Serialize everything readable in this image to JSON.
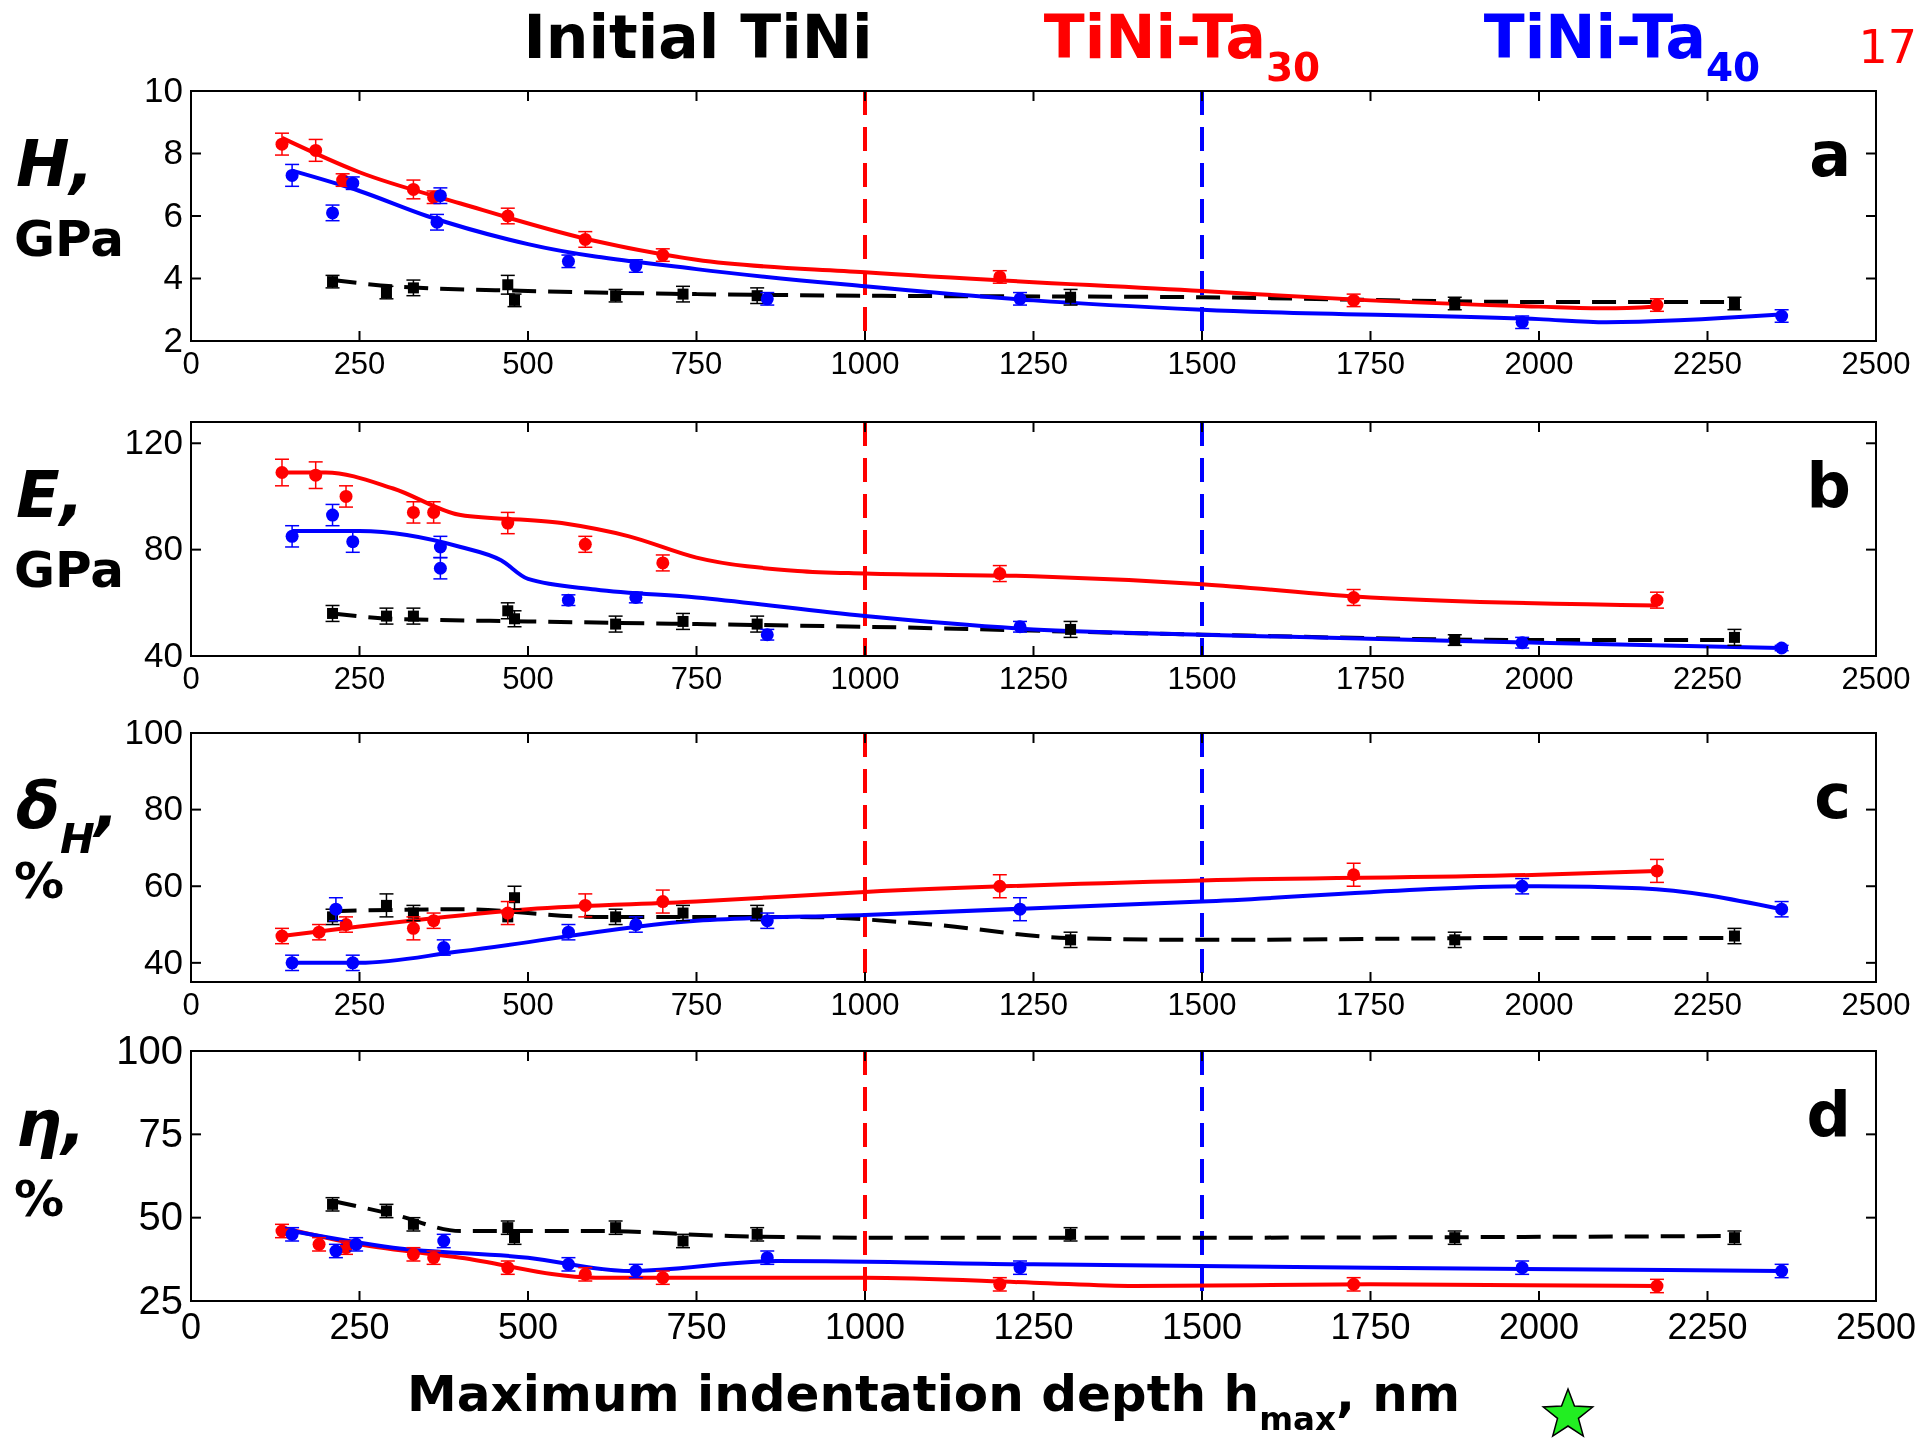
{
  "chart_data": [
    {
      "type": "scatter",
      "legend": "top",
      "ylabel": "H, GPa",
      "annotations": [
        "a",
        "17"
      ],
      "xlim": [
        0,
        2500
      ],
      "xticks": [
        0,
        250,
        500,
        750,
        1000,
        1250,
        1500,
        1750,
        2000,
        2250,
        2500
      ],
      "ylim": [
        2,
        10
      ],
      "yticks": [
        2,
        4,
        6,
        8,
        10
      ],
      "ref_lines": [
        {
          "axis": "x",
          "value": 1000,
          "color": "#ff0000",
          "line_style": "dashed"
        },
        {
          "axis": "x",
          "value": 1500,
          "color": "#0000ff",
          "line_style": "dashed"
        }
      ],
      "series": [
        {
          "type": "scatter",
          "name": "Initial TiNi",
          "color": "#000000",
          "marker": "square",
          "x": [
            210,
            290,
            330,
            470,
            480,
            630,
            730,
            840,
            1305,
            1875,
            2290
          ],
          "values": [
            3.9,
            3.55,
            3.7,
            3.8,
            3.3,
            3.45,
            3.5,
            3.45,
            3.4,
            3.2,
            3.2
          ],
          "errors": [
            0.2,
            0.2,
            0.25,
            0.3,
            0.2,
            0.2,
            0.25,
            0.25,
            0.25,
            0.2,
            0.2
          ]
        },
        {
          "type": "scatter",
          "name": "TiNi-Ta$_{30}$",
          "color": "#ff0000",
          "marker": "circle",
          "x": [
            135,
            185,
            225,
            330,
            360,
            470,
            585,
            700,
            1200,
            1725,
            2175
          ],
          "values": [
            8.3,
            8.1,
            7.15,
            6.85,
            6.6,
            6.0,
            5.25,
            4.75,
            4.05,
            3.3,
            3.15
          ],
          "errors": [
            0.35,
            0.35,
            0.2,
            0.3,
            0.2,
            0.25,
            0.25,
            0.2,
            0.2,
            0.2,
            0.2
          ]
        },
        {
          "type": "scatter",
          "name": "TiNi-Ta$_{40}$",
          "color": "#0000ff",
          "marker": "circle",
          "x": [
            150,
            210,
            240,
            365,
            370,
            560,
            660,
            855,
            1230,
            1975,
            2360
          ],
          "values": [
            7.3,
            6.1,
            7.05,
            5.8,
            6.65,
            4.55,
            4.4,
            3.35,
            3.35,
            2.6,
            2.8
          ],
          "errors": [
            0.35,
            0.25,
            0.2,
            0.25,
            0.25,
            0.2,
            0.2,
            0.2,
            0.2,
            0.2,
            0.2
          ]
        },
        {
          "type": "line",
          "color": "#000000",
          "line_style": "dashed",
          "x": [
            210,
            300,
            500,
            750,
            1000,
            1500,
            2000,
            2290
          ],
          "values": [
            3.95,
            3.75,
            3.6,
            3.5,
            3.45,
            3.4,
            3.25,
            3.25
          ]
        },
        {
          "type": "line",
          "color": "#ff0000",
          "line_style": "solid",
          "x": [
            135,
            250,
            400,
            600,
            750,
            1000,
            1500,
            1750,
            2000,
            2100,
            2175
          ],
          "values": [
            8.5,
            7.4,
            6.4,
            5.2,
            4.6,
            4.2,
            3.6,
            3.3,
            3.1,
            3.05,
            3.1
          ]
        },
        {
          "type": "line",
          "color": "#0000ff",
          "line_style": "solid",
          "x": [
            150,
            250,
            350,
            500,
            750,
            1000,
            1250,
            1500,
            2000,
            2100,
            2360
          ],
          "values": [
            7.45,
            6.8,
            6.0,
            5.1,
            4.3,
            3.75,
            3.3,
            3.0,
            2.7,
            2.6,
            2.85
          ]
        }
      ]
    },
    {
      "type": "scatter",
      "ylabel": "E, GPa",
      "annotations": [
        "b"
      ],
      "xlim": [
        0,
        2500
      ],
      "xticks": [
        0,
        250,
        500,
        750,
        1000,
        1250,
        1500,
        1750,
        2000,
        2250,
        2500
      ],
      "ylim": [
        40,
        128
      ],
      "yticks": [
        40,
        80,
        120
      ],
      "ref_lines": [
        {
          "axis": "x",
          "value": 1000,
          "color": "#ff0000",
          "line_style": "dashed"
        },
        {
          "axis": "x",
          "value": 1500,
          "color": "#0000ff",
          "line_style": "dashed"
        }
      ],
      "series": [
        {
          "type": "scatter",
          "color": "#000000",
          "marker": "square",
          "x": [
            210,
            290,
            330,
            470,
            480,
            630,
            730,
            840,
            1305,
            1875,
            2290
          ],
          "values": [
            56,
            55,
            55,
            57,
            54,
            52,
            53,
            52,
            50,
            46,
            47
          ],
          "errors": [
            3,
            3,
            3,
            3,
            3,
            3,
            3,
            3,
            3,
            2,
            3
          ]
        },
        {
          "type": "scatter",
          "color": "#ff0000",
          "marker": "circle",
          "x": [
            135,
            185,
            230,
            330,
            360,
            470,
            585,
            700,
            1200,
            1725,
            2175
          ],
          "values": [
            109,
            108,
            100,
            94,
            94,
            90,
            82,
            75,
            71,
            62,
            61
          ],
          "errors": [
            5,
            5,
            4,
            4,
            4,
            4,
            3,
            3,
            3,
            3,
            3
          ]
        },
        {
          "type": "scatter",
          "color": "#0000ff",
          "marker": "circle",
          "x": [
            150,
            210,
            240,
            370,
            370,
            560,
            660,
            855,
            1230,
            1975,
            2360
          ],
          "values": [
            85,
            93,
            83,
            81,
            73,
            61,
            62,
            48,
            51,
            45,
            43
          ],
          "errors": [
            4,
            4,
            4,
            4,
            4,
            2,
            2,
            2,
            2,
            2,
            1
          ]
        },
        {
          "type": "line",
          "color": "#000000",
          "line_style": "dashed",
          "x": [
            210,
            300,
            500,
            750,
            1000,
            1500,
            2000,
            2290
          ],
          "values": [
            56,
            54,
            53,
            52,
            51,
            48,
            46,
            46
          ]
        },
        {
          "type": "line",
          "color": "#ff0000",
          "line_style": "solid",
          "x": [
            135,
            200,
            300,
            400,
            550,
            650,
            750,
            900,
            1000,
            1250,
            1500,
            1750,
            2175
          ],
          "values": [
            109,
            109,
            103,
            93,
            90,
            85,
            77,
            72,
            71,
            70,
            67,
            62,
            59
          ]
        },
        {
          "type": "line",
          "color": "#0000ff",
          "line_style": "solid",
          "x": [
            150,
            250,
            400,
            460,
            500,
            600,
            750,
            1000,
            1250,
            1500,
            2000,
            2360
          ],
          "values": [
            87,
            87,
            81,
            76,
            69,
            65,
            62,
            55,
            50,
            48,
            45,
            43
          ]
        }
      ]
    },
    {
      "type": "scatter",
      "ylabel": "δ$_{H}$, %",
      "annotations": [
        "c"
      ],
      "xlim": [
        0,
        2500
      ],
      "xticks": [
        0,
        250,
        500,
        750,
        1000,
        1250,
        1500,
        1750,
        2000,
        2250,
        2500
      ],
      "ylim": [
        35,
        100
      ],
      "yticks": [
        40,
        60,
        80,
        100
      ],
      "ref_lines": [
        {
          "axis": "x",
          "value": 1000,
          "color": "#ff0000",
          "line_style": "dashed"
        },
        {
          "axis": "x",
          "value": 1500,
          "color": "#0000ff",
          "line_style": "dashed"
        }
      ],
      "series": [
        {
          "type": "scatter",
          "color": "#000000",
          "marker": "square",
          "x": [
            210,
            290,
            330,
            470,
            480,
            630,
            730,
            840,
            1305,
            1875,
            2290
          ],
          "values": [
            52,
            55,
            53,
            52,
            57,
            52,
            53,
            53,
            46,
            46,
            47
          ],
          "errors": [
            2,
            3,
            2,
            null,
            3,
            2,
            2,
            2,
            2,
            2,
            2
          ]
        },
        {
          "type": "scatter",
          "color": "#ff0000",
          "marker": "circle",
          "x": [
            135,
            190,
            230,
            330,
            360,
            470,
            585,
            700,
            1200,
            1725,
            2175
          ],
          "values": [
            47,
            48,
            50,
            49,
            51,
            53,
            55,
            56,
            60,
            63,
            64
          ],
          "errors": [
            2,
            2,
            2,
            3,
            2,
            3,
            3,
            3,
            3,
            3,
            3
          ]
        },
        {
          "type": "scatter",
          "color": "#0000ff",
          "marker": "circle",
          "x": [
            150,
            215,
            240,
            375,
            560,
            660,
            855,
            1230,
            1975,
            2360
          ],
          "values": [
            40,
            54,
            40,
            44,
            48,
            50,
            51,
            54,
            60,
            54
          ],
          "errors": [
            2,
            3,
            2,
            2,
            2,
            2,
            2,
            3,
            2,
            2
          ]
        },
        {
          "type": "line",
          "color": "#000000",
          "line_style": "dashed",
          "x": [
            210,
            400,
            600,
            900,
            1100,
            1300,
            1500,
            2000,
            2290
          ],
          "values": [
            53.5,
            54,
            52,
            52,
            50,
            46.5,
            46,
            46.5,
            46.5
          ]
        },
        {
          "type": "line",
          "color": "#ff0000",
          "line_style": "solid",
          "x": [
            135,
            250,
            500,
            750,
            1000,
            1500,
            2000,
            2175
          ],
          "values": [
            47,
            49.5,
            54,
            56,
            58.5,
            61.5,
            63,
            64
          ]
        },
        {
          "type": "line",
          "color": "#0000ff",
          "line_style": "solid",
          "x": [
            150,
            250,
            400,
            750,
            1000,
            1500,
            2000,
            2150,
            2360
          ],
          "values": [
            40,
            40,
            43,
            51,
            52.5,
            56,
            60,
            59.5,
            54
          ]
        }
      ]
    },
    {
      "type": "scatter",
      "ylabel": "η, %",
      "xlabel": "Maximum indentation depth h$_{max}$, nm",
      "annotations": [
        "d"
      ],
      "xlim": [
        0,
        2500
      ],
      "xticks": [
        0,
        250,
        500,
        750,
        1000,
        1250,
        1500,
        1750,
        2000,
        2250,
        2500
      ],
      "ylim": [
        25,
        100
      ],
      "yticks": [
        25,
        50,
        75,
        100
      ],
      "ref_lines": [
        {
          "axis": "x",
          "value": 1000,
          "color": "#ff0000",
          "line_style": "dashed"
        },
        {
          "axis": "x",
          "value": 1500,
          "color": "#0000ff",
          "line_style": "dashed"
        }
      ],
      "series": [
        {
          "type": "scatter",
          "color": "#000000",
          "marker": "square",
          "x": [
            210,
            290,
            330,
            470,
            480,
            630,
            730,
            840,
            1305,
            1875,
            2290
          ],
          "values": [
            54,
            52,
            48,
            47,
            44,
            47,
            43,
            45,
            45,
            44,
            44
          ],
          "errors": [
            2,
            2,
            2,
            2,
            2,
            2,
            2,
            2,
            2,
            2,
            2
          ]
        },
        {
          "type": "scatter",
          "color": "#ff0000",
          "marker": "circle",
          "x": [
            135,
            190,
            230,
            330,
            360,
            470,
            585,
            700,
            1200,
            1725,
            2175
          ],
          "values": [
            46,
            42,
            41,
            39,
            38,
            35,
            33,
            32,
            30,
            30,
            29.5
          ],
          "errors": [
            2,
            2,
            2,
            2,
            2,
            2,
            2,
            2,
            2,
            2,
            2
          ]
        },
        {
          "type": "scatter",
          "color": "#0000ff",
          "marker": "circle",
          "x": [
            150,
            215,
            245,
            375,
            560,
            660,
            855,
            1230,
            1975,
            2360
          ],
          "values": [
            45,
            40,
            42,
            43,
            36,
            34,
            38,
            35,
            35,
            34
          ],
          "errors": [
            2,
            2,
            2,
            2,
            2,
            2,
            2,
            2,
            2,
            2
          ]
        },
        {
          "type": "line",
          "color": "#000000",
          "line_style": "dashed",
          "x": [
            210,
            300,
            400,
            600,
            800,
            1000,
            1500,
            2290
          ],
          "values": [
            55,
            51,
            46,
            46,
            44.5,
            44,
            44,
            44.5
          ]
        },
        {
          "type": "line",
          "color": "#ff0000",
          "line_style": "solid",
          "x": [
            135,
            250,
            400,
            600,
            1000,
            1250,
            1400,
            1750,
            2175
          ],
          "values": [
            47,
            42,
            38,
            32,
            32,
            30.5,
            29.5,
            30,
            29.5
          ]
        },
        {
          "type": "line",
          "color": "#0000ff",
          "line_style": "solid",
          "x": [
            150,
            300,
            500,
            650,
            870,
            1250,
            1750,
            2360
          ],
          "values": [
            46,
            41,
            38,
            34,
            37,
            36,
            35,
            34
          ]
        }
      ]
    }
  ]
}
